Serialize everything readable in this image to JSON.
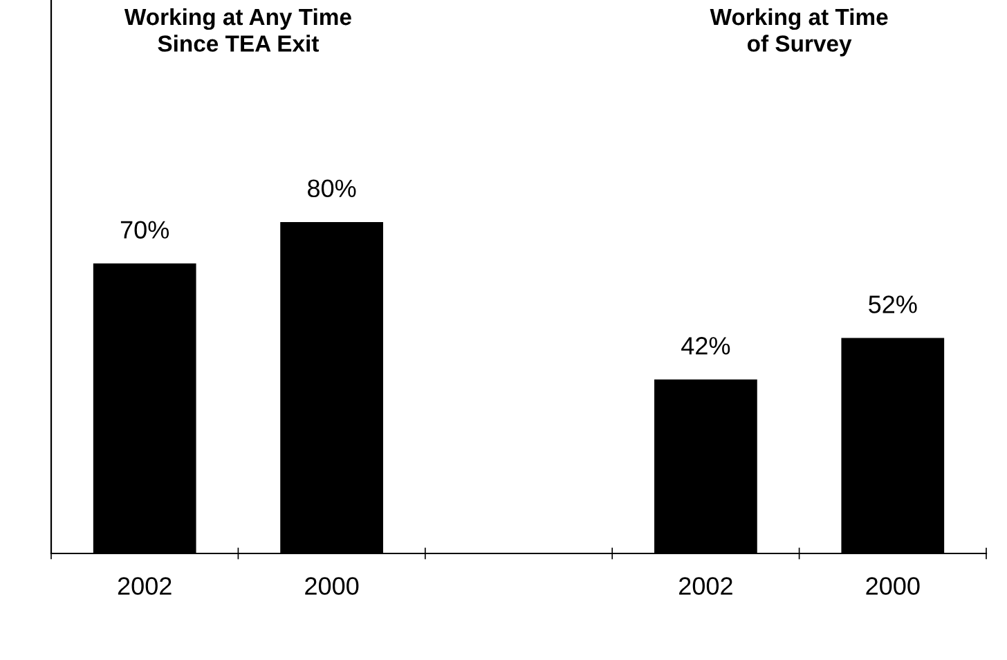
{
  "chart_data": {
    "type": "bar",
    "categories": [
      "2002",
      "2000",
      null,
      "2002",
      "2000"
    ],
    "values": [
      70,
      80,
      null,
      42,
      52
    ],
    "value_labels": [
      "70%",
      "80%",
      null,
      "42%",
      "52%"
    ],
    "color": "#000000",
    "annotations": [
      "Working at Any Time\nSince TEA Exit",
      "Working at Time\nof Survey"
    ],
    "grid": false,
    "legend": false
  }
}
